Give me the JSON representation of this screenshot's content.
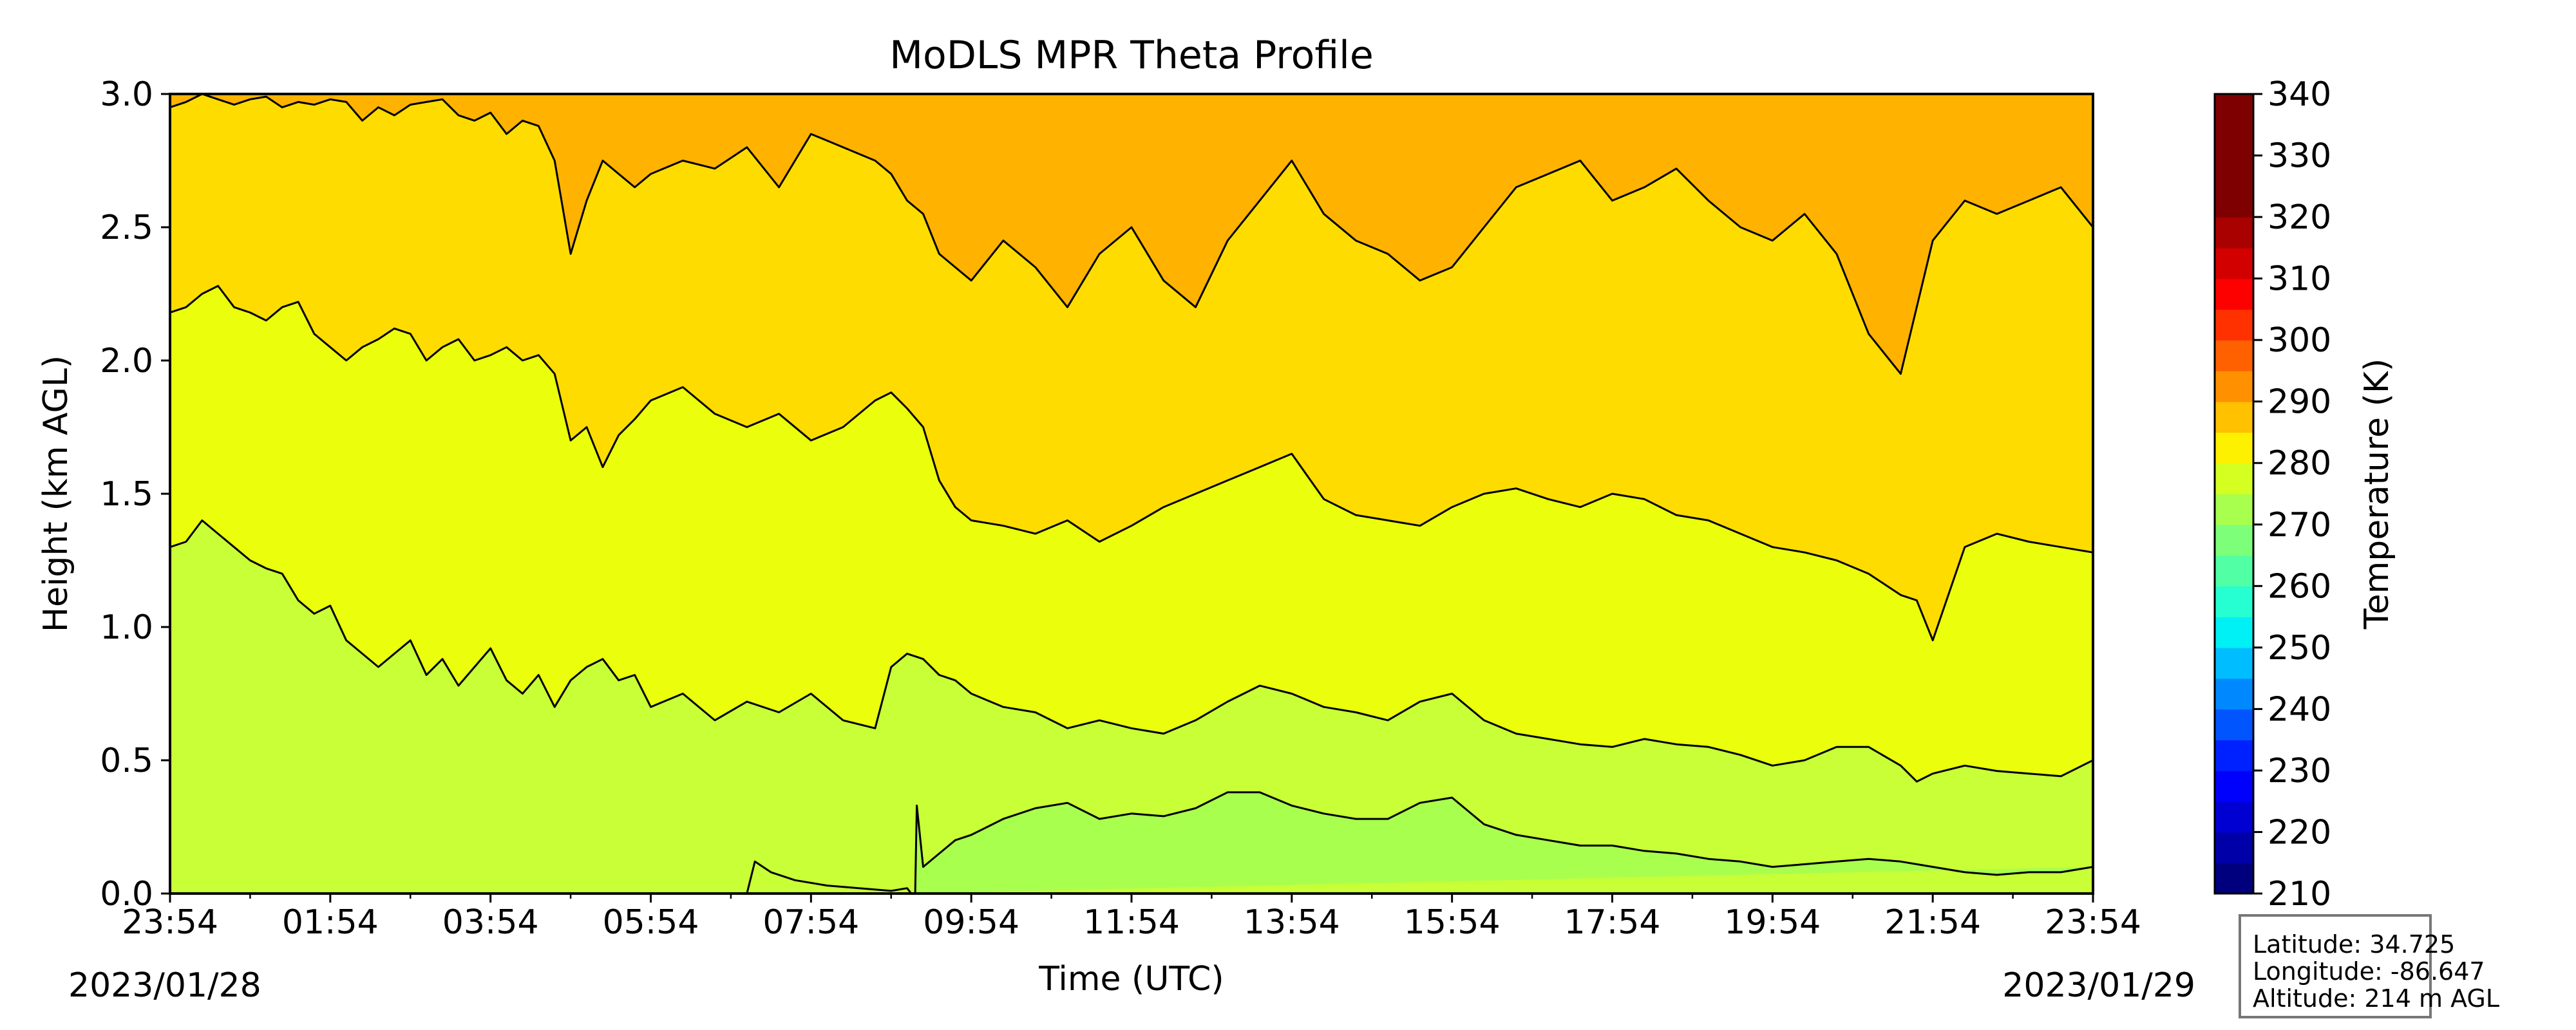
{
  "chart_data": {
    "type": "heatmap",
    "title": "MoDLS MPR Theta Profile",
    "xlabel": "Time (UTC)",
    "ylabel": "Height (km AGL)",
    "x_ticks": [
      "23:54",
      "01:54",
      "03:54",
      "05:54",
      "07:54",
      "09:54",
      "11:54",
      "13:54",
      "15:54",
      "17:54",
      "19:54",
      "21:54",
      "23:54"
    ],
    "start_date_label": "2023/01/28",
    "end_date_label": "2023/01/29",
    "xlim_hours": [
      0,
      24
    ],
    "ylim": [
      0,
      3.0
    ],
    "y_ticks": [
      0.0,
      0.5,
      1.0,
      1.5,
      2.0,
      2.5,
      3.0
    ],
    "colorbar": {
      "label": "Temperature (K)",
      "range": [
        210,
        340
      ],
      "ticks": [
        210,
        220,
        230,
        240,
        250,
        260,
        270,
        280,
        290,
        300,
        310,
        320,
        330,
        340
      ],
      "colors": [
        "#00007f",
        "#0000a9",
        "#0000d3",
        "#0000fd",
        "#0021ff",
        "#0055ff",
        "#0089ff",
        "#00bdff",
        "#00f1f5",
        "#25ffd1",
        "#51ffa5",
        "#7dff79",
        "#a9ff4d",
        "#d5ff21",
        "#fdf100",
        "#ffc100",
        "#ff9100",
        "#ff6100",
        "#ff3100",
        "#fd0100",
        "#d30000",
        "#a90000",
        "#7f0000",
        "#7f0000",
        "#7f0000",
        "#7f0000"
      ]
    },
    "band_colors": {
      "275-280": "#a9ff4d",
      "280-285": "#c8ff37",
      "285-290": "#ebff0d",
      "290-295": "#ffdc00",
      "295-300": "#ffb300"
    },
    "contour_levels_K": [
      280,
      285,
      290,
      295
    ],
    "contours": [
      {
        "level": 280,
        "segments": [
          {
            "x": [
              7.2,
              7.3,
              7.5,
              7.8,
              8.2,
              8.6,
              9.0,
              9.2,
              9.25
            ],
            "y": [
              0.0,
              0.12,
              0.08,
              0.05,
              0.03,
              0.02,
              0.01,
              0.02,
              0.0
            ]
          },
          {
            "x": [
              9.3,
              9.32,
              9.4,
              9.6,
              9.8,
              10.0,
              10.4,
              10.8,
              11.2,
              11.6,
              12.0,
              12.4,
              12.8,
              13.2,
              13.6,
              14.0,
              14.4,
              14.8,
              15.2,
              15.6,
              16.0,
              16.4,
              16.8,
              17.2,
              17.6,
              18.0,
              18.4,
              18.8,
              19.2,
              19.6,
              20.0,
              20.4,
              20.8,
              21.2,
              21.6,
              22.0,
              22.4,
              22.8,
              23.2,
              23.6,
              24.0
            ],
            "y": [
              0.0,
              0.33,
              0.1,
              0.15,
              0.2,
              0.22,
              0.28,
              0.32,
              0.34,
              0.28,
              0.3,
              0.29,
              0.32,
              0.38,
              0.38,
              0.33,
              0.3,
              0.28,
              0.28,
              0.34,
              0.36,
              0.26,
              0.22,
              0.2,
              0.18,
              0.18,
              0.16,
              0.15,
              0.13,
              0.12,
              0.1,
              0.11,
              0.12,
              0.13,
              0.12,
              0.1,
              0.08,
              0.07,
              0.08,
              0.08,
              0.1
            ]
          }
        ]
      },
      {
        "level": 285,
        "segments": [
          {
            "x": [
              0.0,
              0.2,
              0.4,
              0.6,
              0.8,
              1.0,
              1.2,
              1.4,
              1.6,
              1.8,
              2.0,
              2.2,
              2.4,
              2.6,
              2.8,
              3.0,
              3.2,
              3.4,
              3.6,
              3.8,
              4.0,
              4.2,
              4.4,
              4.6,
              4.8,
              5.0,
              5.2,
              5.4,
              5.6,
              5.8,
              6.0,
              6.4,
              6.8,
              7.2,
              7.6,
              8.0,
              8.4,
              8.8,
              9.0,
              9.2,
              9.4,
              9.6,
              9.8,
              10.0,
              10.4,
              10.8,
              11.2,
              11.6,
              12.0,
              12.4,
              12.8,
              13.2,
              13.6,
              14.0,
              14.4,
              14.8,
              15.2,
              15.6,
              16.0,
              16.4,
              16.8,
              17.2,
              17.6,
              18.0,
              18.4,
              18.8,
              19.2,
              19.6,
              20.0,
              20.4,
              20.8,
              21.2,
              21.6,
              21.8,
              22.0,
              22.4,
              22.8,
              23.2,
              23.6,
              24.0
            ],
            "y": [
              1.3,
              1.32,
              1.4,
              1.35,
              1.3,
              1.25,
              1.22,
              1.2,
              1.1,
              1.05,
              1.08,
              0.95,
              0.9,
              0.85,
              0.9,
              0.95,
              0.82,
              0.88,
              0.78,
              0.85,
              0.92,
              0.8,
              0.75,
              0.82,
              0.7,
              0.8,
              0.85,
              0.88,
              0.8,
              0.82,
              0.7,
              0.75,
              0.65,
              0.72,
              0.68,
              0.75,
              0.65,
              0.62,
              0.85,
              0.9,
              0.88,
              0.82,
              0.8,
              0.75,
              0.7,
              0.68,
              0.62,
              0.65,
              0.62,
              0.6,
              0.65,
              0.72,
              0.78,
              0.75,
              0.7,
              0.68,
              0.65,
              0.72,
              0.75,
              0.65,
              0.6,
              0.58,
              0.56,
              0.55,
              0.58,
              0.56,
              0.55,
              0.52,
              0.48,
              0.5,
              0.55,
              0.55,
              0.48,
              0.42,
              0.45,
              0.48,
              0.46,
              0.45,
              0.44,
              0.5
            ]
          }
        ]
      },
      {
        "level": 290,
        "segments": [
          {
            "x": [
              0.0,
              0.2,
              0.4,
              0.6,
              0.8,
              1.0,
              1.2,
              1.4,
              1.6,
              1.8,
              2.0,
              2.2,
              2.4,
              2.6,
              2.8,
              3.0,
              3.2,
              3.4,
              3.6,
              3.8,
              4.0,
              4.2,
              4.4,
              4.6,
              4.8,
              5.0,
              5.2,
              5.4,
              5.6,
              5.8,
              6.0,
              6.4,
              6.8,
              7.2,
              7.6,
              8.0,
              8.4,
              8.8,
              9.0,
              9.2,
              9.4,
              9.6,
              9.8,
              10.0,
              10.4,
              10.8,
              11.2,
              11.6,
              12.0,
              12.4,
              12.8,
              13.2,
              13.6,
              14.0,
              14.4,
              14.8,
              15.2,
              15.6,
              16.0,
              16.4,
              16.8,
              17.2,
              17.6,
              18.0,
              18.4,
              18.8,
              19.2,
              19.6,
              20.0,
              20.4,
              20.8,
              21.2,
              21.6,
              21.8,
              22.0,
              22.4,
              22.8,
              23.2,
              23.6,
              24.0
            ],
            "y": [
              2.18,
              2.2,
              2.25,
              2.28,
              2.2,
              2.18,
              2.15,
              2.2,
              2.22,
              2.1,
              2.05,
              2.0,
              2.05,
              2.08,
              2.12,
              2.1,
              2.0,
              2.05,
              2.08,
              2.0,
              2.02,
              2.05,
              2.0,
              2.02,
              1.95,
              1.7,
              1.75,
              1.6,
              1.72,
              1.78,
              1.85,
              1.9,
              1.8,
              1.75,
              1.8,
              1.7,
              1.75,
              1.85,
              1.88,
              1.82,
              1.75,
              1.55,
              1.45,
              1.4,
              1.38,
              1.35,
              1.4,
              1.32,
              1.38,
              1.45,
              1.5,
              1.55,
              1.6,
              1.65,
              1.48,
              1.42,
              1.4,
              1.38,
              1.45,
              1.5,
              1.52,
              1.48,
              1.45,
              1.5,
              1.48,
              1.42,
              1.4,
              1.35,
              1.3,
              1.28,
              1.25,
              1.2,
              1.12,
              1.1,
              0.95,
              1.3,
              1.35,
              1.32,
              1.3,
              1.28
            ]
          }
        ]
      },
      {
        "level": 295,
        "segments": [
          {
            "x": [
              0.0,
              0.2,
              0.4,
              0.6,
              0.8,
              1.0,
              1.2,
              1.4,
              1.6,
              1.8,
              2.0,
              2.2,
              2.4,
              2.6,
              2.8,
              3.0,
              3.2,
              3.4,
              3.6,
              3.8,
              4.0,
              4.2,
              4.4,
              4.6,
              4.8,
              5.0,
              5.2,
              5.4,
              5.6,
              5.8,
              6.0,
              6.4,
              6.8,
              7.2,
              7.6,
              8.0,
              8.4,
              8.8,
              9.0,
              9.2,
              9.4,
              9.6,
              9.8,
              10.0,
              10.4,
              10.8,
              11.2,
              11.6,
              12.0,
              12.4,
              12.8,
              13.2,
              13.6,
              14.0,
              14.4,
              14.8,
              15.2,
              15.6,
              16.0,
              16.4,
              16.8,
              17.2,
              17.6,
              18.0,
              18.4,
              18.8,
              19.2,
              19.6,
              20.0,
              20.4,
              20.8,
              21.2,
              21.6,
              21.8,
              22.0,
              22.4,
              22.8,
              23.2,
              23.6,
              24.0
            ],
            "y": [
              2.95,
              2.97,
              3.0,
              2.98,
              2.96,
              2.98,
              2.99,
              2.95,
              2.97,
              2.96,
              2.98,
              2.97,
              2.9,
              2.95,
              2.92,
              2.96,
              2.97,
              2.98,
              2.92,
              2.9,
              2.93,
              2.85,
              2.9,
              2.88,
              2.75,
              2.4,
              2.6,
              2.75,
              2.7,
              2.65,
              2.7,
              2.75,
              2.72,
              2.8,
              2.65,
              2.85,
              2.8,
              2.75,
              2.7,
              2.6,
              2.55,
              2.4,
              2.35,
              2.3,
              2.45,
              2.35,
              2.2,
              2.4,
              2.5,
              2.3,
              2.2,
              2.45,
              2.6,
              2.75,
              2.55,
              2.45,
              2.4,
              2.3,
              2.35,
              2.5,
              2.65,
              2.7,
              2.75,
              2.6,
              2.65,
              2.72,
              2.6,
              2.5,
              2.45,
              2.55,
              2.4,
              2.1,
              1.95,
              2.2,
              2.45,
              2.6,
              2.55,
              2.6,
              2.65,
              2.5
            ]
          }
        ]
      }
    ]
  },
  "info": {
    "latitude": "Latitude: 34.725",
    "longitude": "Longitude: -86.647",
    "altitude": "Altitude: 214 m AGL"
  }
}
